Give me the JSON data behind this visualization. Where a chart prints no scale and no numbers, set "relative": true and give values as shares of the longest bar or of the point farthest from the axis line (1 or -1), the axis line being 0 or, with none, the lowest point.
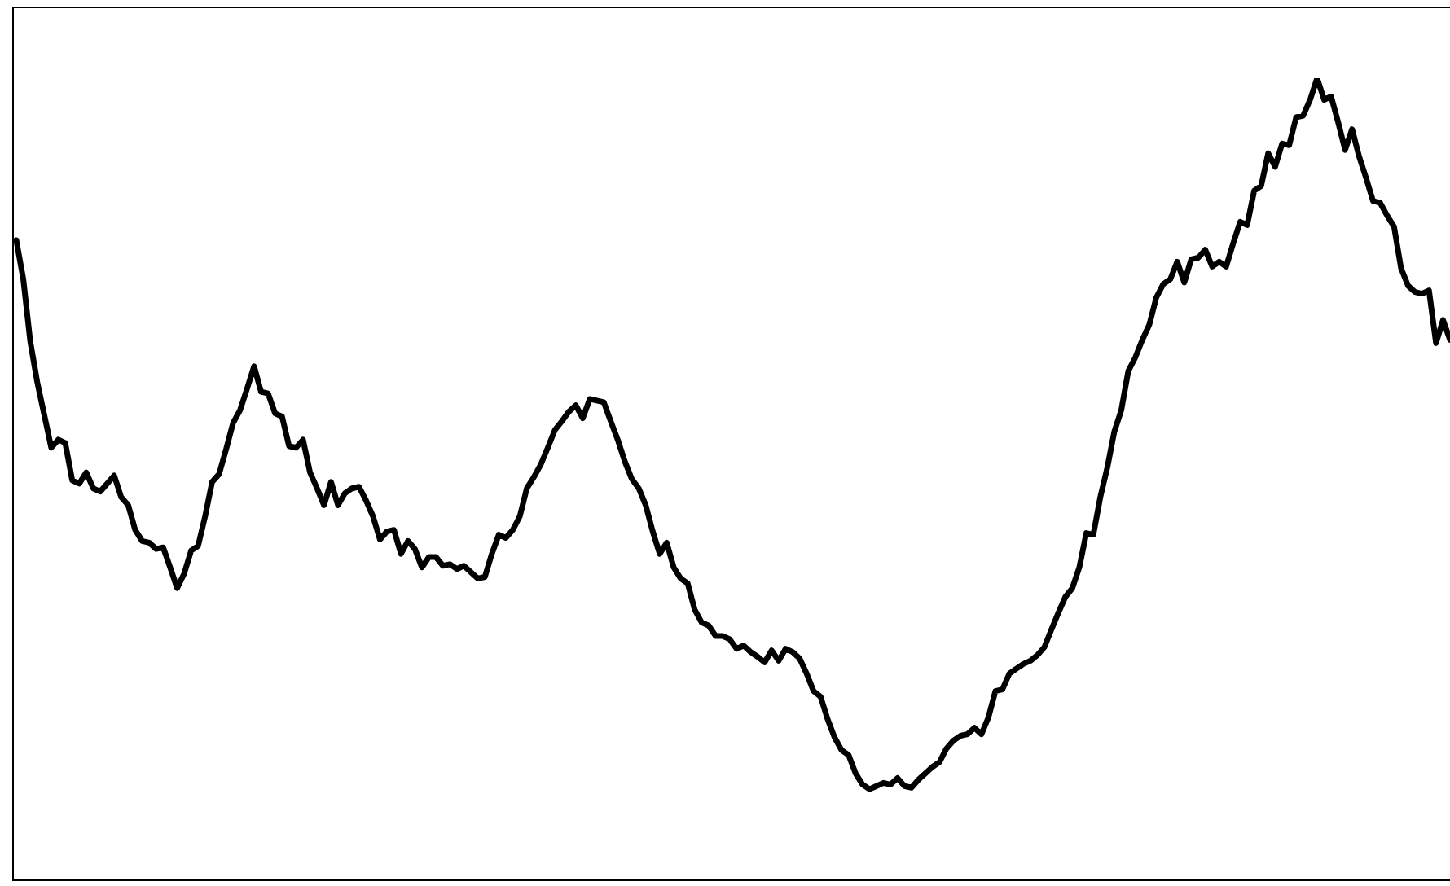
{
  "chart_data": {
    "type": "line",
    "relative": true,
    "color": "#000000",
    "legend": false,
    "marker": "none",
    "line_style": "solid",
    "categories": [
      null,
      null,
      null,
      null,
      null,
      null,
      null,
      null,
      null,
      null,
      null,
      null,
      null,
      null,
      null,
      null,
      null,
      null,
      null,
      null,
      null,
      null,
      null,
      null,
      null,
      null,
      null,
      null,
      null,
      null,
      null,
      null,
      null,
      null,
      null,
      null,
      null,
      null,
      null,
      null,
      null,
      null,
      null,
      null,
      null,
      null,
      null,
      null,
      null,
      null,
      null,
      null,
      null,
      null,
      null,
      null,
      null,
      null,
      null,
      null,
      null,
      null,
      null,
      null,
      null,
      null,
      null,
      null,
      null,
      null,
      null,
      null,
      null,
      null,
      null,
      null,
      null,
      null,
      null,
      null,
      null,
      null,
      null,
      null,
      null,
      null,
      null,
      null,
      null,
      null,
      null,
      null,
      null,
      null,
      null,
      null,
      null,
      null,
      null,
      null,
      null,
      null,
      null,
      null,
      null,
      null,
      null,
      null,
      null,
      null,
      null,
      null,
      null,
      null,
      null,
      null,
      null,
      null,
      null,
      null,
      null,
      null,
      null,
      null,
      null,
      null,
      null,
      null,
      null,
      null,
      null,
      null,
      null,
      null,
      null,
      null,
      null,
      null,
      null,
      null,
      null,
      null,
      null,
      null,
      null,
      null,
      null,
      null,
      null,
      null,
      null,
      null,
      null,
      null,
      null,
      null,
      null,
      null,
      null,
      null,
      null,
      null,
      null,
      null,
      null,
      null,
      null,
      null,
      null,
      null,
      null,
      null,
      null,
      null,
      null,
      null,
      null,
      null,
      null,
      null,
      null,
      null,
      null,
      null,
      null,
      null,
      null,
      null,
      null,
      null,
      null,
      null,
      null,
      null,
      null,
      null,
      null,
      null,
      null,
      null,
      null,
      null,
      null,
      null,
      null,
      null
    ],
    "values": [
      0.797,
      0.748,
      0.67,
      0.619,
      0.578,
      0.537,
      0.547,
      0.543,
      0.496,
      0.492,
      0.506,
      0.486,
      0.482,
      0.492,
      0.502,
      0.475,
      0.465,
      0.434,
      0.42,
      0.418,
      0.41,
      0.412,
      0.387,
      0.361,
      0.379,
      0.408,
      0.414,
      0.451,
      0.494,
      0.504,
      0.535,
      0.568,
      0.584,
      0.611,
      0.639,
      0.607,
      0.605,
      0.58,
      0.576,
      0.539,
      0.537,
      0.547,
      0.506,
      0.486,
      0.465,
      0.494,
      0.465,
      0.48,
      0.486,
      0.488,
      0.471,
      0.451,
      0.422,
      0.432,
      0.434,
      0.404,
      0.42,
      0.41,
      0.387,
      0.4,
      0.4,
      0.389,
      0.391,
      0.385,
      0.389,
      0.381,
      0.373,
      0.375,
      0.404,
      0.428,
      0.424,
      0.434,
      0.451,
      0.486,
      0.5,
      0.516,
      0.537,
      0.559,
      0.57,
      0.582,
      0.59,
      0.574,
      0.598,
      0.596,
      0.594,
      0.57,
      0.547,
      0.52,
      0.498,
      0.486,
      0.465,
      0.432,
      0.404,
      0.418,
      0.387,
      0.373,
      0.367,
      0.334,
      0.318,
      0.314,
      0.301,
      0.301,
      0.297,
      0.285,
      0.289,
      0.281,
      0.275,
      0.268,
      0.283,
      0.27,
      0.285,
      0.281,
      0.273,
      0.254,
      0.232,
      0.225,
      0.197,
      0.174,
      0.158,
      0.152,
      0.129,
      0.115,
      0.109,
      0.113,
      0.117,
      0.115,
      0.123,
      0.113,
      0.111,
      0.121,
      0.129,
      0.137,
      0.143,
      0.16,
      0.17,
      0.176,
      0.178,
      0.186,
      0.178,
      0.199,
      0.232,
      0.234,
      0.254,
      0.26,
      0.266,
      0.27,
      0.277,
      0.287,
      0.309,
      0.33,
      0.35,
      0.361,
      0.387,
      0.43,
      0.428,
      0.475,
      0.512,
      0.557,
      0.584,
      0.633,
      0.65,
      0.672,
      0.691,
      0.725,
      0.742,
      0.748,
      0.77,
      0.744,
      0.773,
      0.775,
      0.785,
      0.764,
      0.77,
      0.764,
      0.793,
      0.82,
      0.816,
      0.859,
      0.865,
      0.906,
      0.889,
      0.918,
      0.916,
      0.951,
      0.953,
      0.973,
      1,
      0.973,
      0.977,
      0.945,
      0.91,
      0.936,
      0.902,
      0.875,
      0.846,
      0.844,
      0.828,
      0.814,
      0.762,
      0.74,
      0.732,
      0.73,
      0.734,
      0.668,
      0.697,
      0.672
    ]
  }
}
